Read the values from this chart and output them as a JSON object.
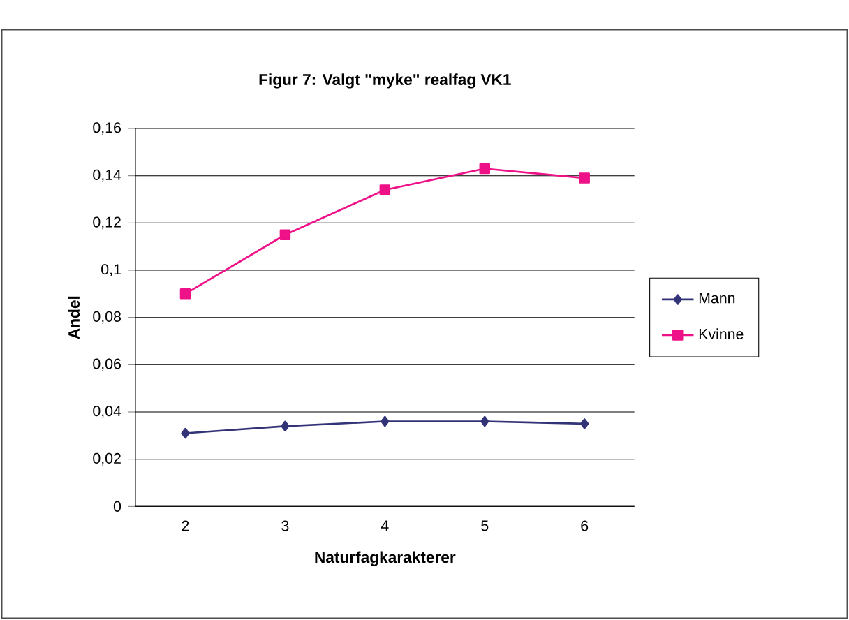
{
  "chart_data": {
    "type": "line",
    "title": "Figur 7: Valgt \"myke\" realfag VK1",
    "xlabel": "Naturfagkarakterer",
    "ylabel": "Andel",
    "categories": [
      "2",
      "3",
      "4",
      "5",
      "6"
    ],
    "series": [
      {
        "name": "Mann",
        "color": "#333377",
        "marker": "diamond",
        "values": [
          0.031,
          0.034,
          0.036,
          0.036,
          0.035
        ]
      },
      {
        "name": "Kvinne",
        "color": "#ee1188",
        "marker": "square",
        "values": [
          0.09,
          0.115,
          0.134,
          0.143,
          0.139
        ]
      }
    ],
    "ylim": [
      0,
      0.16
    ],
    "yticks": [
      {
        "value": 0,
        "label": "0"
      },
      {
        "value": 0.02,
        "label": "0,02"
      },
      {
        "value": 0.04,
        "label": "0,04"
      },
      {
        "value": 0.06,
        "label": "0,06"
      },
      {
        "value": 0.08,
        "label": "0,08"
      },
      {
        "value": 0.1,
        "label": "0,1"
      },
      {
        "value": 0.12,
        "label": "0,12"
      },
      {
        "value": 0.14,
        "label": "0,14"
      },
      {
        "value": 0.16,
        "label": "0,16"
      }
    ],
    "grid": "y",
    "legend": "right",
    "line_style": "solid"
  }
}
